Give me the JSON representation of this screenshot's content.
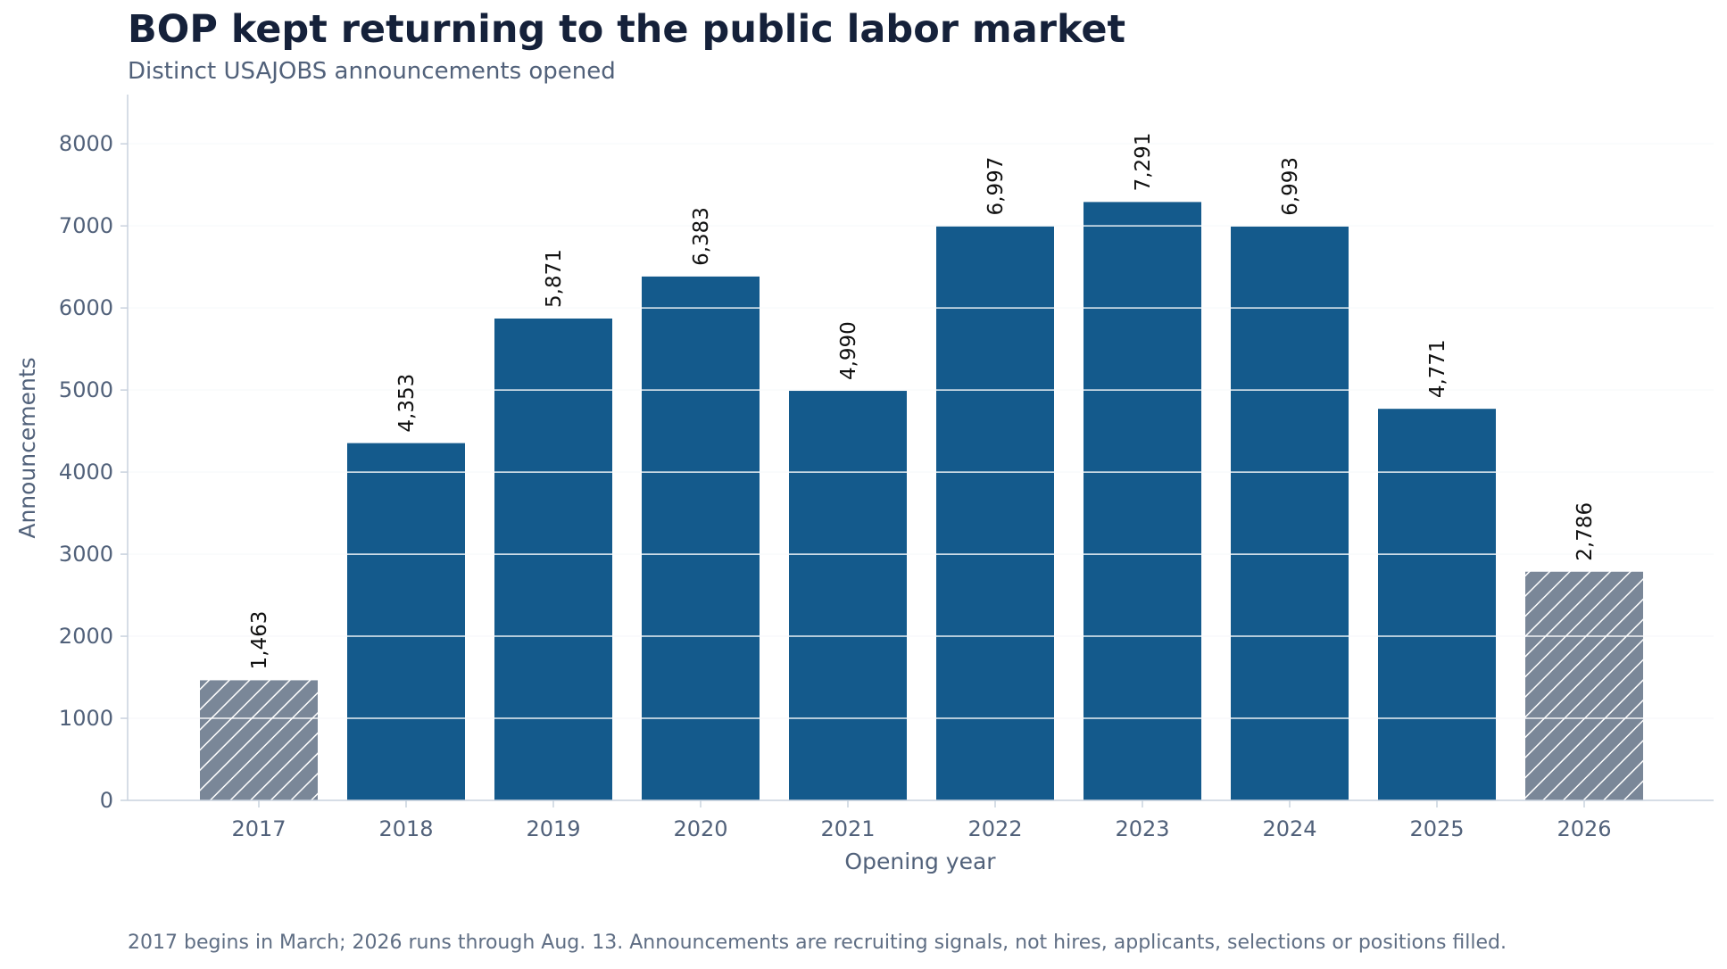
{
  "chart_data": {
    "type": "bar",
    "title": "BOP kept returning to the public labor market",
    "subtitle": "Distinct USAJOBS announcements opened",
    "xlabel": "Opening year",
    "ylabel": "Announcements",
    "categories": [
      "2017",
      "2018",
      "2019",
      "2020",
      "2021",
      "2022",
      "2023",
      "2024",
      "2025",
      "2026"
    ],
    "values": [
      1463,
      4353,
      5871,
      6383,
      4990,
      6997,
      7291,
      6993,
      4771,
      2786
    ],
    "value_labels": [
      "1,463",
      "4,353",
      "5,871",
      "6,383",
      "4,990",
      "6,997",
      "7,291",
      "6,993",
      "4,771",
      "2,786"
    ],
    "partial_year": [
      true,
      false,
      false,
      false,
      false,
      false,
      false,
      false,
      false,
      true
    ],
    "ylim": [
      0,
      8600
    ],
    "yticks": [
      "0",
      "1000",
      "2000",
      "3000",
      "4000",
      "5000",
      "6000",
      "7000",
      "8000"
    ],
    "grid": "horizontal",
    "legend": "none",
    "colors": {
      "full_year": "#145a8c",
      "partial_year": "#7a8798",
      "hatch": "#ffffff",
      "gridline": "#e1e7ef",
      "axis": "#c9d2de"
    },
    "footnote": "2017 begins in March; 2026 runs through Aug. 13. Announcements are recruiting signals, not hires, applicants, selections or positions filled."
  }
}
